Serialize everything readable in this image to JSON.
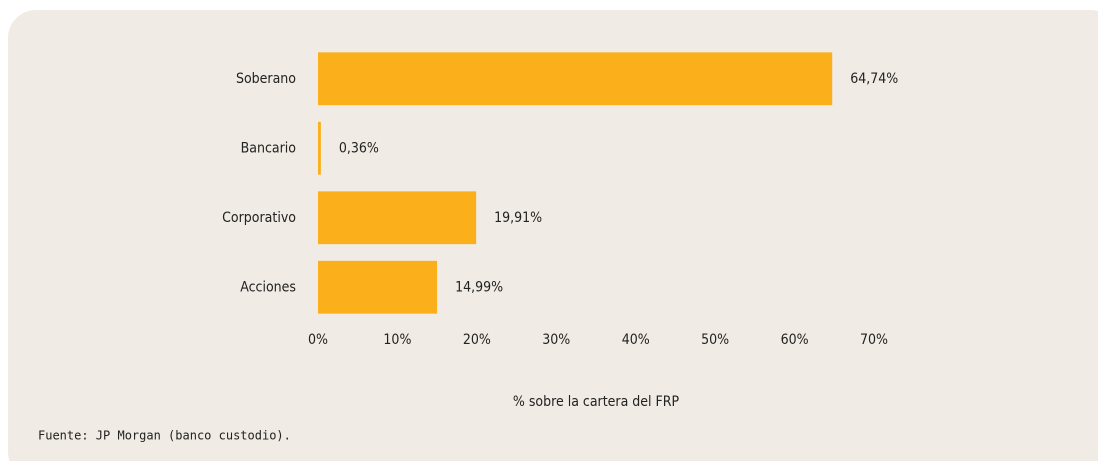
{
  "chart_data": {
    "type": "hbar",
    "categories": [
      "Soberano",
      "Bancario",
      "Corporativo",
      "Acciones"
    ],
    "values": [
      64.74,
      0.36,
      19.91,
      14.99
    ],
    "value_labels": [
      "64,74%",
      "0,36%",
      "19,91%",
      "14,99%"
    ],
    "color": "#fbb01b",
    "xlim": [
      0,
      70
    ],
    "xticks": [
      {
        "value": 0,
        "label": "0%"
      },
      {
        "value": 10,
        "label": "10%"
      },
      {
        "value": 20,
        "label": "20%"
      },
      {
        "value": 30,
        "label": "30%"
      },
      {
        "value": 40,
        "label": "40%"
      },
      {
        "value": 50,
        "label": "50%"
      },
      {
        "value": 60,
        "label": "60%"
      },
      {
        "value": 70,
        "label": "70%"
      }
    ],
    "xlabel": "% sobre la cartera del FRP",
    "source": "Fuente: JP Morgan (banco custodio).",
    "grid": false
  }
}
